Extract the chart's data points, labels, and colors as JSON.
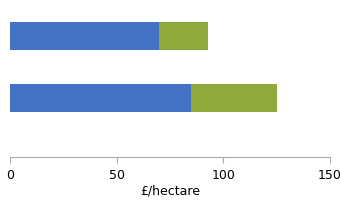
{
  "bars": [
    {
      "blue": 70,
      "green": 23
    },
    {
      "blue": 85,
      "green": 40
    }
  ],
  "blue_color": "#4472c4",
  "green_color": "#8faa3c",
  "xlabel": "£/hectare",
  "xlim": [
    0,
    150
  ],
  "xticks": [
    0,
    50,
    100,
    150
  ],
  "background_color": "#ffffff",
  "bar_height": 0.55,
  "ylim": [
    -0.55,
    2.4
  ]
}
